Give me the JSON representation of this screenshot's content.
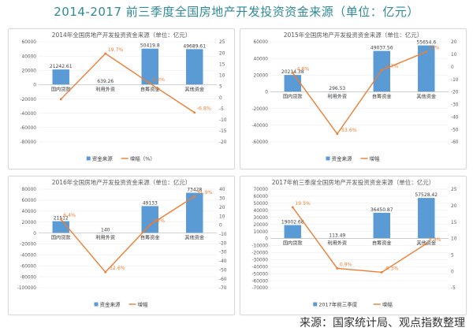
{
  "page": {
    "title": "2014-2017 前三季度全国房地产开发投资资金来源（单位：亿元）",
    "source": "来源：国家统计局、观点指数整理"
  },
  "colors": {
    "bar": "#5b9bd5",
    "line": "#ed7d31",
    "title": "#2e8a95"
  },
  "chart_data": [
    {
      "type": "bar",
      "title": "2014年全国房地产开发投资资金来源（单位：亿元）",
      "categories": [
        "国内贷款",
        "利用外资",
        "自筹资金",
        "其他资金"
      ],
      "series": [
        {
          "name": "资金来源",
          "type": "bar",
          "axis": "left",
          "values": [
            21242.61,
            639.26,
            50419.8,
            49689.61
          ],
          "labels": [
            "21242.61",
            "639.26",
            "50419.8",
            "49689.61"
          ]
        },
        {
          "name": "增幅（%）",
          "type": "line",
          "axis": "right",
          "values": [
            -0.8,
            19.7,
            6.3,
            -6.8
          ],
          "labels": [
            "",
            "19.7%",
            "6.3%",
            "-6.8%"
          ]
        }
      ],
      "y_left": {
        "min": -80000,
        "max": 60000,
        "step": 20000
      },
      "y_right": {
        "min": -20,
        "max": 25,
        "step": 5
      },
      "legend": [
        "资金来源",
        "增幅（%）"
      ],
      "legend_position": "bottom"
    },
    {
      "type": "bar",
      "title": "2015年全国房地产开发投资资金来源（单位：亿元）",
      "categories": [
        "国内贷款",
        "利用外资",
        "自筹资金",
        "其他资金"
      ],
      "series": [
        {
          "name": "资金来源",
          "type": "bar",
          "axis": "left",
          "values": [
            20214.38,
            296.53,
            49037.56,
            55654.6
          ],
          "labels": [
            "20214.38",
            "296.53",
            "49037.56",
            "55654.6"
          ]
        },
        {
          "name": "增幅",
          "type": "line",
          "axis": "right",
          "values": [
            -4.8,
            -53.6,
            -2.7,
            12
          ],
          "labels": [
            "-4.8%",
            "-53.6%",
            "-2.7%",
            "12%"
          ]
        }
      ],
      "y_left": {
        "min": -60000,
        "max": 60000,
        "step": 20000
      },
      "y_right": {
        "min": -60,
        "max": 20,
        "step": 10
      },
      "legend": [
        "资金来源",
        "增幅"
      ],
      "legend_position": "bottom"
    },
    {
      "type": "bar",
      "title": "2016年全国房地产开发投资资金来源（单位：亿元）",
      "categories": [
        "国内贷款",
        "利用外资",
        "自筹资金",
        "其他资金"
      ],
      "series": [
        {
          "name": "资金来源",
          "type": "bar",
          "axis": "left",
          "values": [
            21512,
            140,
            49133,
            73428
          ],
          "labels": [
            "21512",
            "140",
            "49133",
            "73428"
          ]
        },
        {
          "name": "增幅",
          "type": "line",
          "axis": "right",
          "values": [
            6.4,
            -52.6,
            0.2,
            31.9
          ],
          "labels": [
            "6.4%",
            "-52.6%",
            "0.2%",
            "31.9%"
          ]
        }
      ],
      "y_left": {
        "min": -100000,
        "max": 80000,
        "step": 20000
      },
      "y_right": {
        "min": -70,
        "max": 40,
        "step": 10
      },
      "legend": [
        "资金来源",
        "增幅"
      ],
      "legend_position": "bottom"
    },
    {
      "type": "bar",
      "title": "2017年前三季度全国房地产开发投资资金来源（单位：亿元）",
      "categories": [
        "国内贷款",
        "利用外资",
        "自筹资金",
        "其他资金"
      ],
      "series": [
        {
          "name": "2017年前三季度",
          "type": "bar",
          "axis": "left",
          "values": [
            19002.68,
            113.49,
            36450.87,
            57528.42
          ],
          "labels": [
            "19002.68",
            "113.49",
            "36450.87",
            "57528.42"
          ]
        },
        {
          "name": "增幅",
          "type": "line",
          "axis": "right",
          "values": [
            19.5,
            0.9,
            -0.3,
            8.4
          ],
          "labels": [
            "19.5%",
            "0.9%",
            "-0.3%",
            "8.4%"
          ]
        }
      ],
      "y_left": {
        "min": -70000,
        "max": 70000,
        "step": 10000
      },
      "y_right": {
        "min": -5,
        "max": 25,
        "step": 5
      },
      "legend": [
        "2017年前三季度",
        "增幅"
      ],
      "legend_position": "bottom"
    }
  ]
}
